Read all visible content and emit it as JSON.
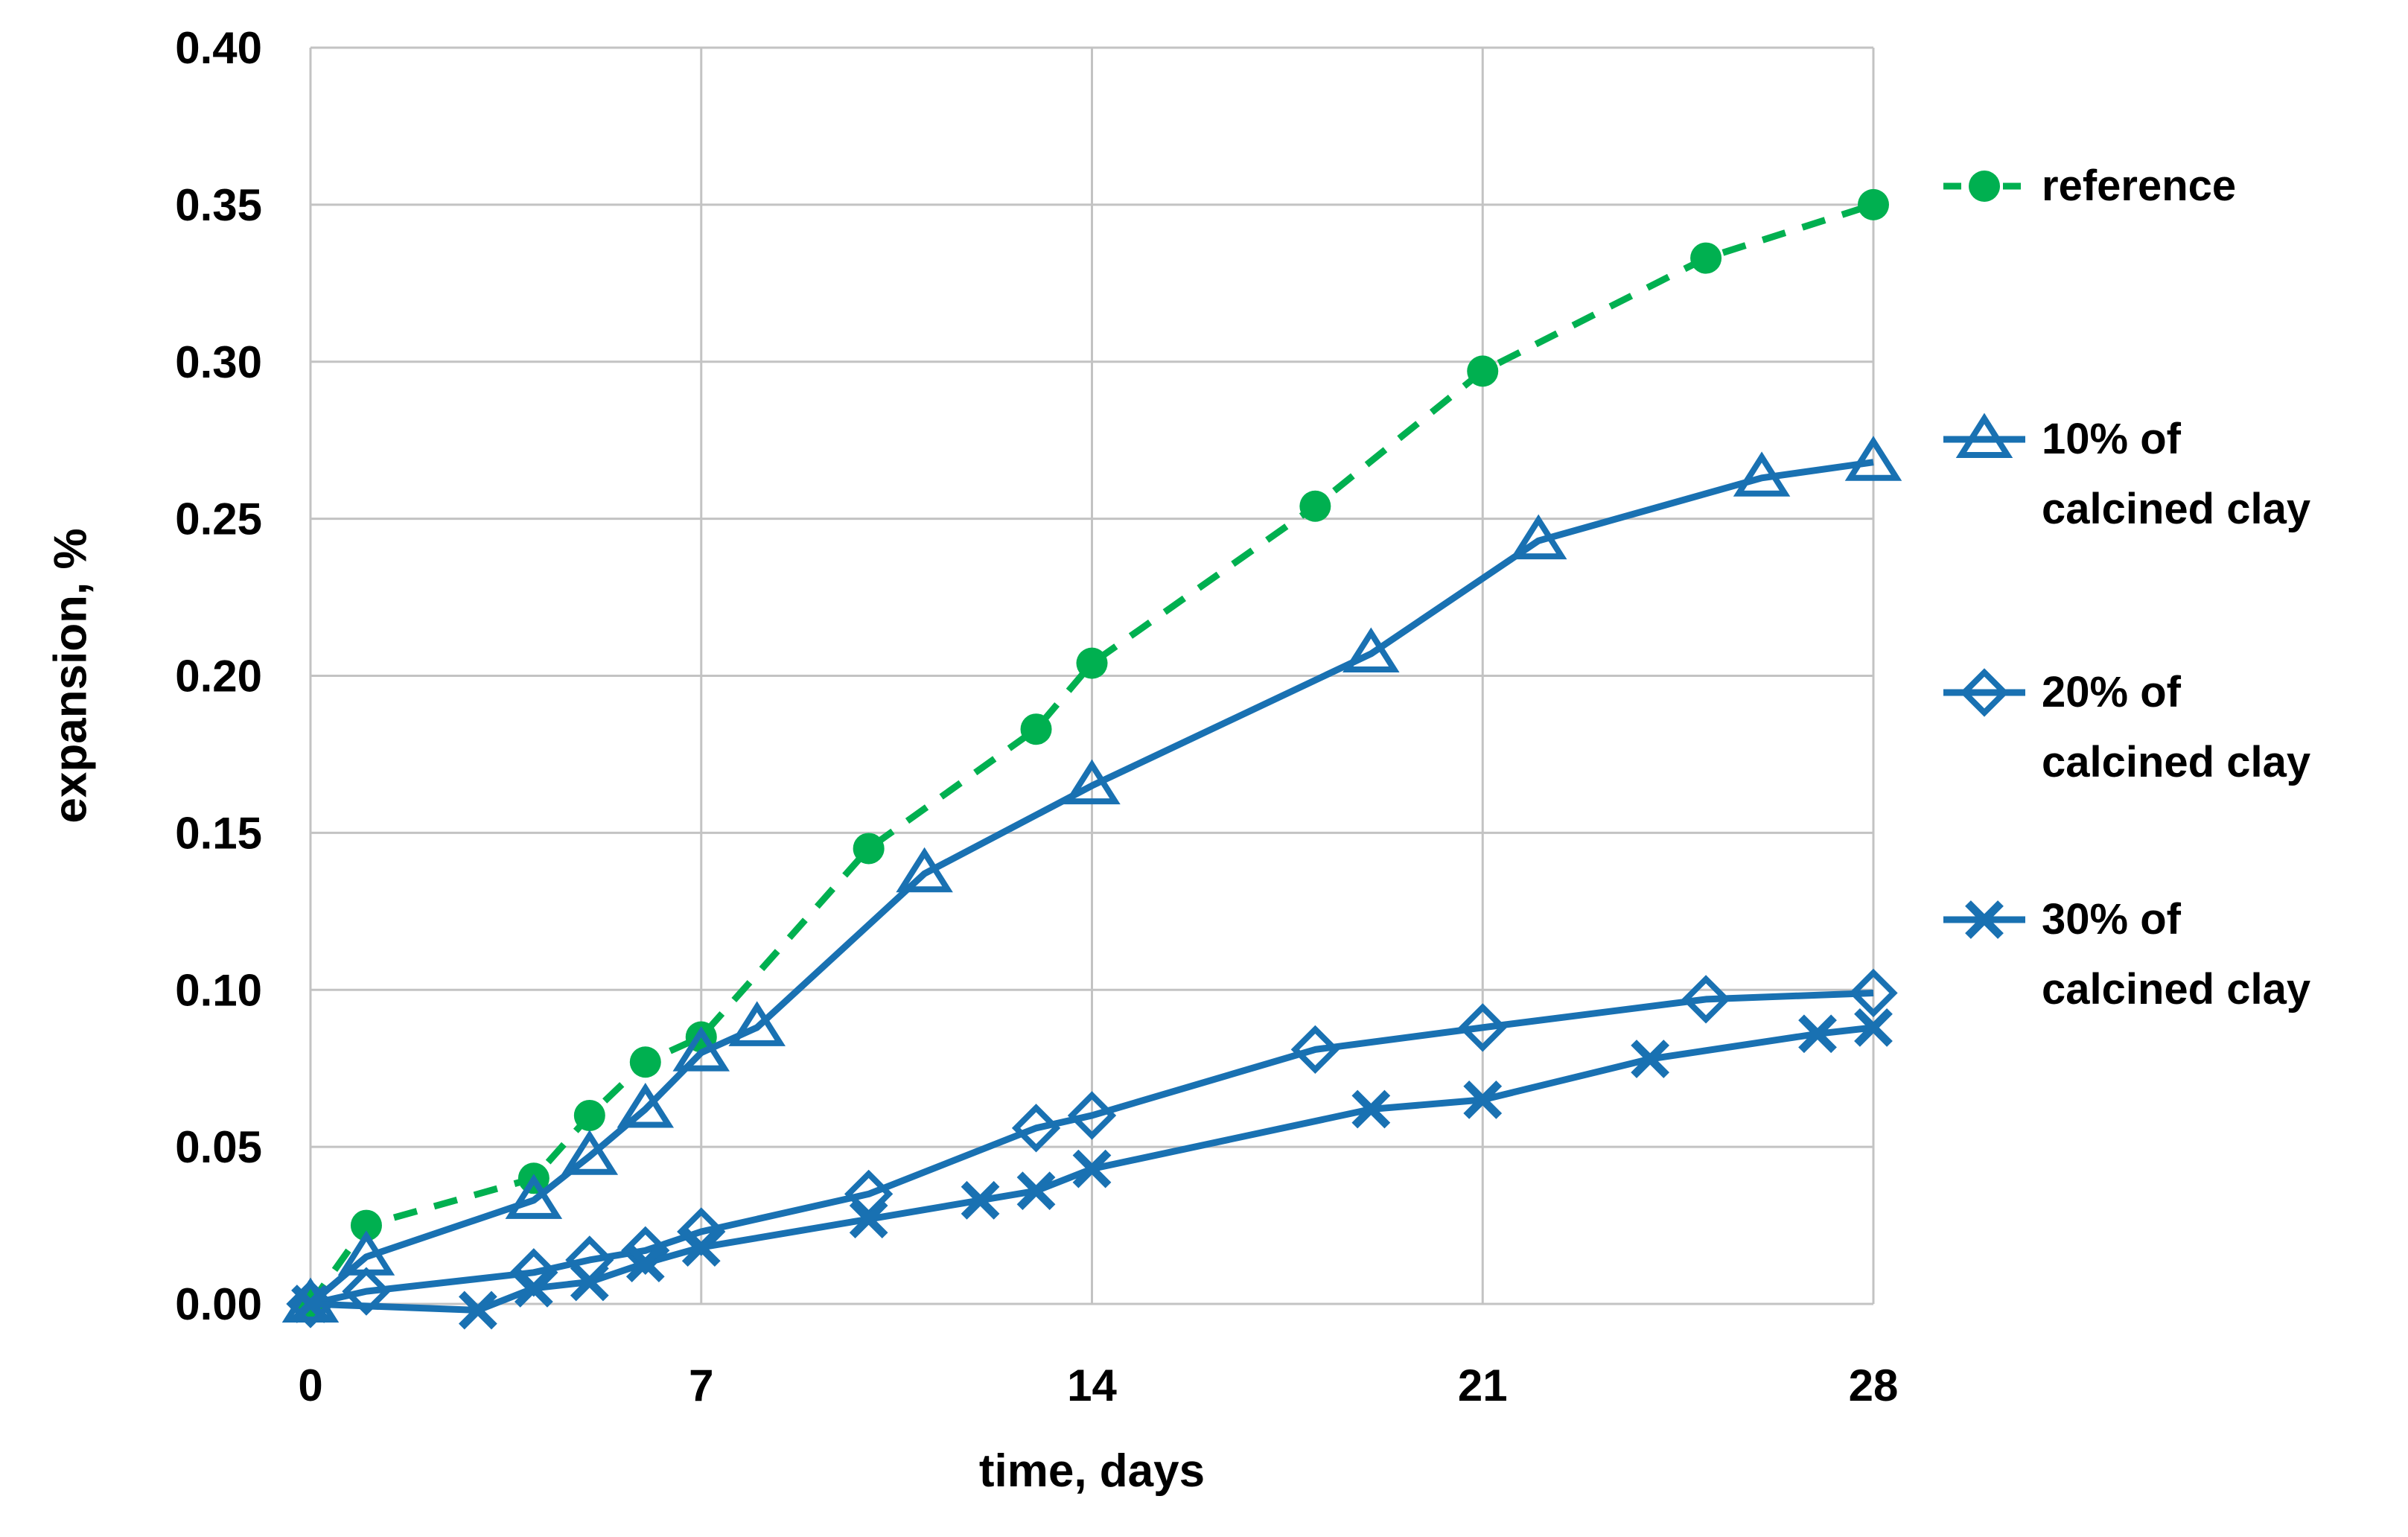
{
  "chart_data": {
    "type": "line",
    "title": "",
    "xlabel": "time, days",
    "ylabel": "expansion, %",
    "xlim": [
      0,
      28
    ],
    "ylim": [
      0,
      0.4
    ],
    "x_ticks": [
      0,
      7,
      14,
      21,
      28
    ],
    "x_tick_labels": [
      "0",
      "7",
      "14",
      "21",
      "28"
    ],
    "y_ticks": [
      0,
      0.05,
      0.1,
      0.15,
      0.2,
      0.25,
      0.3,
      0.35,
      0.4
    ],
    "y_tick_labels": [
      "0.00",
      "0.05",
      "0.10",
      "0.15",
      "0.20",
      "0.25",
      "0.30",
      "0.35",
      "0.40"
    ],
    "grid": true,
    "grid_color": "#C3C3C3",
    "background_color": "#FFFFFF",
    "text_color": "#000000",
    "legend_position": "right",
    "series": [
      {
        "id": "reference",
        "name": "reference",
        "legend_lines": [
          "reference"
        ],
        "color": "#00B050",
        "line_style": "dashed",
        "marker": "circle",
        "points": [
          [
            0,
            0.0
          ],
          [
            1,
            0.025
          ],
          [
            4,
            0.04
          ],
          [
            5,
            0.06
          ],
          [
            6,
            0.077
          ],
          [
            7,
            0.085
          ],
          [
            10,
            0.145
          ],
          [
            13,
            0.183
          ],
          [
            14,
            0.204
          ],
          [
            18,
            0.254
          ],
          [
            21,
            0.297
          ],
          [
            25,
            0.333
          ],
          [
            28,
            0.35
          ]
        ]
      },
      {
        "id": "clay-10",
        "name": "10% of calcined clay",
        "legend_lines": [
          "10% of",
          "calcined clay"
        ],
        "color": "#1971B2",
        "line_style": "solid",
        "marker": "triangle",
        "points": [
          [
            0,
            0.0
          ],
          [
            1,
            0.015
          ],
          [
            4,
            0.033
          ],
          [
            5,
            0.047
          ],
          [
            6,
            0.062
          ],
          [
            7,
            0.08
          ],
          [
            8,
            0.088
          ],
          [
            11,
            0.137
          ],
          [
            14,
            0.165
          ],
          [
            19,
            0.207
          ],
          [
            22,
            0.243
          ],
          [
            26,
            0.263
          ],
          [
            28,
            0.268
          ]
        ]
      },
      {
        "id": "clay-20",
        "name": "20% of calcined clay",
        "legend_lines": [
          "20% of",
          "calcined clay"
        ],
        "color": "#1971B2",
        "line_style": "solid",
        "marker": "diamond",
        "points": [
          [
            0,
            0.0
          ],
          [
            1,
            0.004
          ],
          [
            4,
            0.01
          ],
          [
            5,
            0.014
          ],
          [
            6,
            0.017
          ],
          [
            7,
            0.023
          ],
          [
            10,
            0.035
          ],
          [
            13,
            0.056
          ],
          [
            14,
            0.06
          ],
          [
            18,
            0.081
          ],
          [
            21,
            0.088
          ],
          [
            25,
            0.097
          ],
          [
            28,
            0.099
          ]
        ]
      },
      {
        "id": "clay-30",
        "name": "30% of calcined clay",
        "legend_lines": [
          "30% of",
          "calcined clay"
        ],
        "color": "#1971B2",
        "line_style": "solid",
        "marker": "xcross",
        "points": [
          [
            0,
            0.0
          ],
          [
            3,
            -0.002
          ],
          [
            4,
            0.005
          ],
          [
            5,
            0.007
          ],
          [
            6,
            0.013
          ],
          [
            7,
            0.018
          ],
          [
            10,
            0.027
          ],
          [
            12,
            0.033
          ],
          [
            13,
            0.036
          ],
          [
            14,
            0.043
          ],
          [
            19,
            0.062
          ],
          [
            21,
            0.065
          ],
          [
            24,
            0.078
          ],
          [
            27,
            0.086
          ],
          [
            28,
            0.088
          ]
        ]
      }
    ]
  }
}
